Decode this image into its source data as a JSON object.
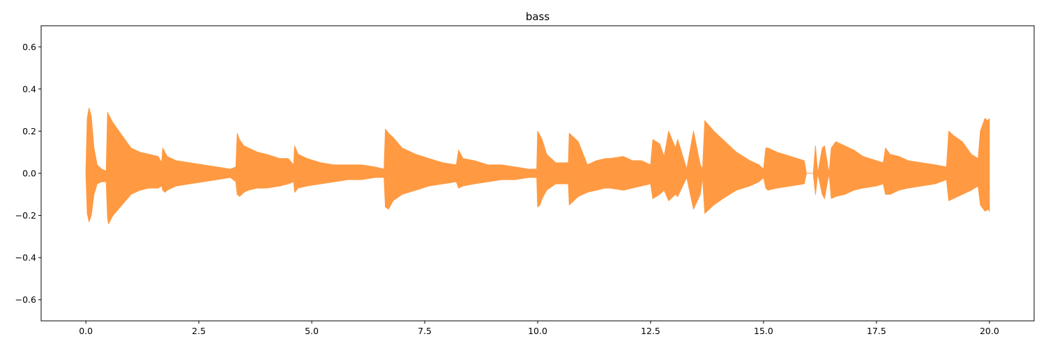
{
  "chart_data": {
    "type": "area",
    "title": "bass",
    "xlabel": "",
    "ylabel": "",
    "xlim": [
      -0.99,
      20.99
    ],
    "ylim": [
      -0.7,
      0.7
    ],
    "x_ticks": [
      0.0,
      2.5,
      5.0,
      7.5,
      10.0,
      12.5,
      15.0,
      17.5,
      20.0
    ],
    "x_tick_labels": [
      "0.0",
      "2.5",
      "5.0",
      "7.5",
      "10.0",
      "12.5",
      "15.0",
      "17.5",
      "20.0"
    ],
    "y_ticks": [
      0.6,
      0.4,
      0.2,
      0.0,
      -0.2,
      -0.4,
      -0.6
    ],
    "y_tick_labels": [
      "0.6",
      "0.4",
      "0.2",
      "0.0",
      "−0.2",
      "−0.4",
      "−0.6"
    ],
    "grid": false,
    "legend": "none",
    "series": [
      {
        "color": "#ff9a43",
        "x": [
          0.0,
          0.03,
          0.07,
          0.12,
          0.18,
          0.25,
          0.35,
          0.45,
          0.48,
          0.5,
          0.6,
          0.8,
          1.0,
          1.2,
          1.4,
          1.6,
          1.68,
          1.7,
          1.75,
          1.8,
          2.0,
          2.3,
          2.6,
          2.9,
          3.2,
          3.32,
          3.35,
          3.4,
          3.5,
          3.6,
          3.8,
          4.0,
          4.3,
          4.48,
          4.6,
          4.62,
          4.7,
          4.9,
          5.2,
          5.5,
          5.8,
          6.1,
          6.4,
          6.6,
          6.63,
          6.7,
          6.8,
          7.0,
          7.3,
          7.6,
          7.9,
          8.2,
          8.25,
          8.35,
          8.6,
          8.9,
          9.2,
          9.5,
          9.8,
          9.98,
          10.0,
          10.05,
          10.1,
          10.2,
          10.4,
          10.68,
          10.7,
          10.8,
          10.9,
          11.1,
          11.3,
          11.5,
          11.6,
          11.9,
          12.1,
          12.3,
          12.5,
          12.55,
          12.7,
          12.8,
          12.9,
          13.05,
          13.1,
          13.3,
          13.45,
          13.6,
          13.65,
          13.7,
          13.9,
          14.1,
          14.4,
          14.7,
          14.9,
          15.0,
          15.05,
          15.1,
          15.3,
          15.6,
          15.9,
          15.95,
          16.1,
          16.15,
          16.2,
          16.3,
          16.35,
          16.45,
          16.5,
          16.6,
          16.8,
          17.0,
          17.2,
          17.5,
          17.65,
          17.7,
          17.8,
          18.0,
          18.2,
          18.5,
          18.8,
          19.05,
          19.1,
          19.2,
          19.4,
          19.6,
          19.75,
          19.8,
          19.9,
          19.97,
          20.0
        ],
        "upper": [
          0.0,
          0.26,
          0.31,
          0.27,
          0.12,
          0.04,
          0.02,
          0.01,
          0.29,
          0.28,
          0.24,
          0.18,
          0.12,
          0.1,
          0.09,
          0.08,
          0.05,
          0.12,
          0.1,
          0.08,
          0.06,
          0.05,
          0.04,
          0.03,
          0.02,
          0.03,
          0.19,
          0.16,
          0.13,
          0.12,
          0.1,
          0.09,
          0.07,
          0.07,
          0.04,
          0.13,
          0.09,
          0.07,
          0.05,
          0.04,
          0.04,
          0.04,
          0.03,
          0.02,
          0.21,
          0.19,
          0.17,
          0.12,
          0.09,
          0.07,
          0.05,
          0.04,
          0.11,
          0.07,
          0.06,
          0.04,
          0.04,
          0.03,
          0.02,
          0.02,
          0.2,
          0.18,
          0.16,
          0.09,
          0.05,
          0.05,
          0.19,
          0.17,
          0.15,
          0.04,
          0.06,
          0.07,
          0.07,
          0.08,
          0.06,
          0.06,
          0.04,
          0.16,
          0.14,
          0.08,
          0.2,
          0.12,
          0.16,
          0.02,
          0.2,
          0.04,
          0.02,
          0.25,
          0.2,
          0.16,
          0.1,
          0.06,
          0.04,
          0.02,
          0.12,
          0.12,
          0.1,
          0.08,
          0.06,
          0.0,
          0.0,
          0.13,
          0.0,
          0.12,
          0.13,
          0.0,
          0.12,
          0.15,
          0.13,
          0.11,
          0.08,
          0.06,
          0.05,
          0.12,
          0.09,
          0.08,
          0.06,
          0.05,
          0.04,
          0.03,
          0.2,
          0.18,
          0.15,
          0.09,
          0.07,
          0.2,
          0.26,
          0.25,
          0.26
        ],
        "lower": [
          0.0,
          -0.19,
          -0.23,
          -0.2,
          -0.1,
          -0.05,
          -0.04,
          -0.04,
          -0.21,
          -0.24,
          -0.2,
          -0.15,
          -0.1,
          -0.08,
          -0.07,
          -0.07,
          -0.06,
          -0.08,
          -0.09,
          -0.08,
          -0.06,
          -0.05,
          -0.04,
          -0.03,
          -0.02,
          -0.04,
          -0.1,
          -0.11,
          -0.09,
          -0.08,
          -0.07,
          -0.07,
          -0.06,
          -0.05,
          -0.04,
          -0.09,
          -0.07,
          -0.06,
          -0.05,
          -0.04,
          -0.03,
          -0.03,
          -0.02,
          -0.02,
          -0.16,
          -0.17,
          -0.13,
          -0.1,
          -0.08,
          -0.06,
          -0.05,
          -0.04,
          -0.07,
          -0.06,
          -0.05,
          -0.04,
          -0.03,
          -0.03,
          -0.02,
          -0.02,
          -0.16,
          -0.15,
          -0.12,
          -0.08,
          -0.05,
          -0.05,
          -0.15,
          -0.13,
          -0.11,
          -0.09,
          -0.08,
          -0.07,
          -0.07,
          -0.08,
          -0.07,
          -0.06,
          -0.05,
          -0.12,
          -0.1,
          -0.08,
          -0.13,
          -0.1,
          -0.11,
          -0.02,
          -0.17,
          -0.1,
          -0.02,
          -0.19,
          -0.15,
          -0.12,
          -0.08,
          -0.06,
          -0.04,
          -0.02,
          -0.07,
          -0.08,
          -0.07,
          -0.06,
          -0.05,
          0.0,
          0.0,
          -0.1,
          0.0,
          -0.1,
          -0.12,
          0.0,
          -0.12,
          -0.11,
          -0.1,
          -0.08,
          -0.07,
          -0.06,
          -0.05,
          -0.1,
          -0.1,
          -0.08,
          -0.07,
          -0.06,
          -0.05,
          -0.03,
          -0.13,
          -0.12,
          -0.1,
          -0.08,
          -0.06,
          -0.15,
          -0.18,
          -0.17,
          -0.18
        ]
      }
    ]
  }
}
